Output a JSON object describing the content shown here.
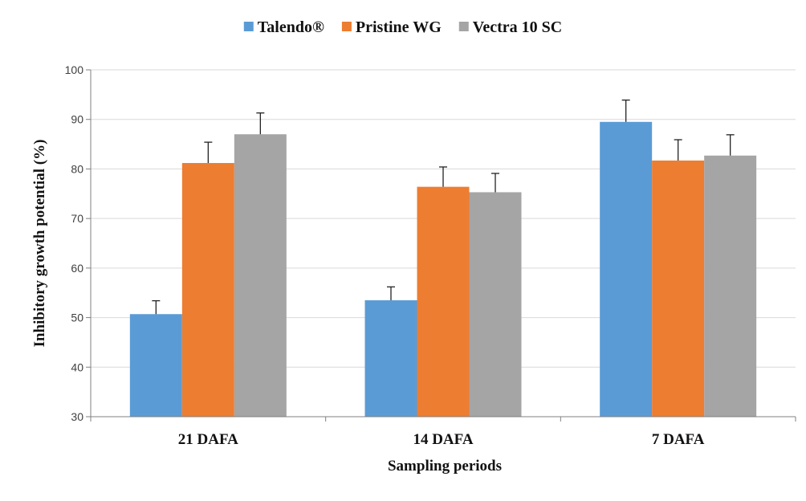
{
  "chart_data": {
    "type": "bar",
    "title": "",
    "xlabel": "Sampling periods",
    "ylabel": "Inhibitory  growth potential (%)",
    "categories": [
      "21 DAFA",
      "14 DAFA",
      "7 DAFA"
    ],
    "series": [
      {
        "name": "Talendo®",
        "color": "#5b9bd5",
        "values": [
          50.7,
          53.5,
          89.5
        ],
        "errors": [
          2.7,
          2.7,
          4.4
        ]
      },
      {
        "name": "Pristine WG",
        "color": "#ed7d31",
        "values": [
          81.2,
          76.4,
          81.7
        ],
        "errors": [
          4.2,
          4.0,
          4.2
        ]
      },
      {
        "name": "Vectra 10 SC",
        "color": "#a5a5a5",
        "values": [
          87.0,
          75.3,
          82.7
        ],
        "errors": [
          4.3,
          3.8,
          4.2
        ]
      }
    ],
    "ylim": [
      30,
      100
    ],
    "yticks": [
      30,
      40,
      50,
      60,
      70,
      80,
      90,
      100
    ],
    "grid": true,
    "legend_position": "top"
  }
}
